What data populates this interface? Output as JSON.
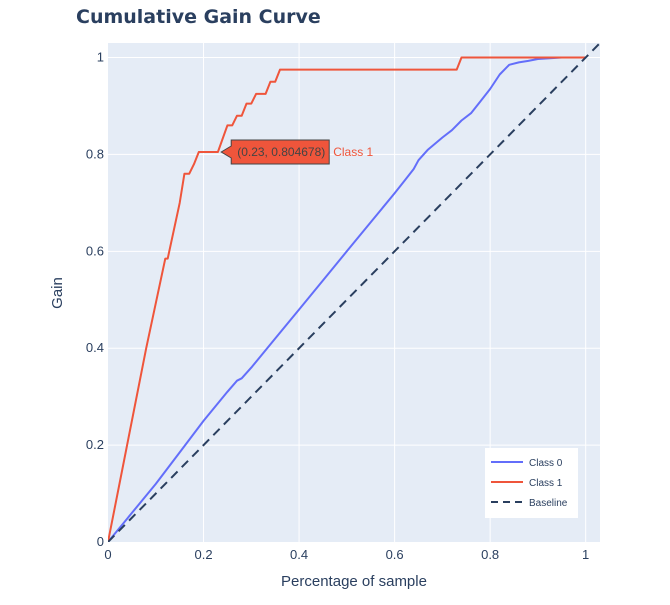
{
  "chart_data": {
    "type": "line",
    "title": "Cumulative Gain Curve",
    "xlabel": "Percentage of sample",
    "ylabel": "Gain",
    "xlim": [
      0,
      1.03
    ],
    "ylim": [
      0,
      1.03
    ],
    "xticks": [
      0,
      0.2,
      0.4,
      0.6,
      0.8,
      1
    ],
    "xtick_labels": [
      "0",
      "0.2",
      "0.4",
      "0.6",
      "0.8",
      "1"
    ],
    "yticks": [
      0,
      0.2,
      0.4,
      0.6,
      0.8,
      1
    ],
    "ytick_labels": [
      "0",
      "0.2",
      "0.4",
      "0.6",
      "0.8",
      "1"
    ],
    "grid": true,
    "legend_position": "bottom-right",
    "series": [
      {
        "name": "Class 0",
        "color": "#636efa",
        "dash": "solid",
        "x": [
          0,
          0.05,
          0.1,
          0.15,
          0.2,
          0.25,
          0.27,
          0.28,
          0.3,
          0.35,
          0.4,
          0.45,
          0.5,
          0.55,
          0.6,
          0.62,
          0.64,
          0.65,
          0.67,
          0.7,
          0.72,
          0.74,
          0.76,
          0.78,
          0.8,
          0.82,
          0.84,
          0.86,
          0.88,
          0.9,
          0.95,
          1.0
        ],
        "y": [
          0,
          0.06,
          0.12,
          0.185,
          0.25,
          0.31,
          0.333,
          0.338,
          0.36,
          0.42,
          0.48,
          0.54,
          0.6,
          0.66,
          0.72,
          0.745,
          0.77,
          0.788,
          0.81,
          0.835,
          0.85,
          0.87,
          0.885,
          0.91,
          0.935,
          0.965,
          0.985,
          0.99,
          0.993,
          0.997,
          1.0,
          1.0
        ]
      },
      {
        "name": "Class 1",
        "color": "#ef553b",
        "dash": "solid",
        "x": [
          0,
          0.04,
          0.08,
          0.12,
          0.125,
          0.15,
          0.16,
          0.17,
          0.18,
          0.19,
          0.2,
          0.23,
          0.25,
          0.26,
          0.27,
          0.28,
          0.29,
          0.3,
          0.31,
          0.33,
          0.34,
          0.35,
          0.36,
          0.37,
          0.5,
          0.6,
          0.73,
          0.74,
          0.8,
          0.9,
          1.0
        ],
        "y": [
          0,
          0.2,
          0.4,
          0.585,
          0.585,
          0.7,
          0.76,
          0.76,
          0.78,
          0.805,
          0.805,
          0.805,
          0.86,
          0.86,
          0.88,
          0.88,
          0.905,
          0.905,
          0.925,
          0.925,
          0.95,
          0.95,
          0.975,
          0.975,
          0.975,
          0.975,
          0.975,
          1.0,
          1.0,
          1.0,
          1.0
        ]
      },
      {
        "name": "Baseline",
        "color": "#2a3f5f",
        "dash": "dash",
        "x": [
          0,
          1.03
        ],
        "y": [
          0,
          1.03
        ]
      }
    ],
    "hover_label": {
      "series": "Class 1",
      "x": 0.237,
      "y": 0.805,
      "text": "(0.23,  0.804678)",
      "name": "Class 1",
      "color": "#ef553b"
    }
  }
}
